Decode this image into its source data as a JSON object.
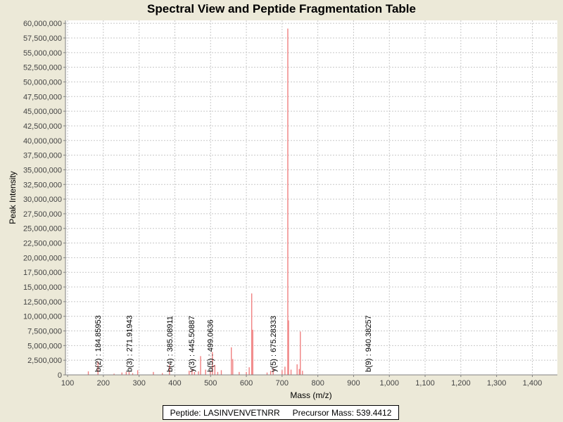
{
  "chart_data": {
    "type": "bar",
    "title": "Spectral View and Peptide Fragmentation Table",
    "xlabel": "Mass (m/z)",
    "ylabel": "Peak Intensity",
    "xlim": [
      94,
      1470
    ],
    "ylim": [
      0,
      60500000
    ],
    "x_ticks": [
      100,
      200,
      300,
      400,
      500,
      600,
      700,
      800,
      900,
      1000,
      1100,
      1200,
      1300,
      1400
    ],
    "x_tick_labels": [
      "100",
      "200",
      "300",
      "400",
      "500",
      "600",
      "700",
      "800",
      "900",
      "1,000",
      "1,100",
      "1,200",
      "1,300",
      "1,400"
    ],
    "y_ticks": [
      0,
      2500000,
      5000000,
      7500000,
      10000000,
      12500000,
      15000000,
      17500000,
      20000000,
      22500000,
      25000000,
      27500000,
      30000000,
      32500000,
      35000000,
      37500000,
      40000000,
      42500000,
      45000000,
      47500000,
      50000000,
      52500000,
      55000000,
      57500000,
      60000000
    ],
    "y_tick_labels": [
      "0",
      "2,500,000",
      "5,000,000",
      "7,500,000",
      "10,000,000",
      "12,500,000",
      "15,000,000",
      "17,500,000",
      "20,000,000",
      "22,500,000",
      "25,000,000",
      "27,500,000",
      "30,000,000",
      "32,500,000",
      "35,000,000",
      "37,500,000",
      "40,000,000",
      "42,500,000",
      "45,000,000",
      "47,500,000",
      "50,000,000",
      "52,500,000",
      "55,000,000",
      "57,500,000",
      "60,000,000"
    ],
    "grid": true,
    "peak_color": "#F08080",
    "peaks": [
      {
        "x": 158,
        "y": 600000
      },
      {
        "x": 185,
        "y": 2300000
      },
      {
        "x": 230,
        "y": 200000
      },
      {
        "x": 252,
        "y": 400000
      },
      {
        "x": 264,
        "y": 500000
      },
      {
        "x": 272,
        "y": 500000
      },
      {
        "x": 282,
        "y": 300000
      },
      {
        "x": 296,
        "y": 800000
      },
      {
        "x": 340,
        "y": 500000
      },
      {
        "x": 365,
        "y": 300000
      },
      {
        "x": 385,
        "y": 1700000
      },
      {
        "x": 440,
        "y": 700000
      },
      {
        "x": 448,
        "y": 900000
      },
      {
        "x": 455,
        "y": 500000
      },
      {
        "x": 466,
        "y": 600000
      },
      {
        "x": 472,
        "y": 3200000
      },
      {
        "x": 486,
        "y": 900000
      },
      {
        "x": 499,
        "y": 600000
      },
      {
        "x": 505,
        "y": 3900000
      },
      {
        "x": 512,
        "y": 1700000
      },
      {
        "x": 520,
        "y": 500000
      },
      {
        "x": 530,
        "y": 800000
      },
      {
        "x": 558,
        "y": 4700000
      },
      {
        "x": 562,
        "y": 2700000
      },
      {
        "x": 580,
        "y": 500000
      },
      {
        "x": 600,
        "y": 500000
      },
      {
        "x": 608,
        "y": 1300000
      },
      {
        "x": 615,
        "y": 13900000
      },
      {
        "x": 618,
        "y": 7700000
      },
      {
        "x": 658,
        "y": 400000
      },
      {
        "x": 668,
        "y": 700000
      },
      {
        "x": 675,
        "y": 1100000
      },
      {
        "x": 700,
        "y": 800000
      },
      {
        "x": 708,
        "y": 1400000
      },
      {
        "x": 716,
        "y": 59100000
      },
      {
        "x": 718,
        "y": 9300000
      },
      {
        "x": 725,
        "y": 900000
      },
      {
        "x": 742,
        "y": 1800000
      },
      {
        "x": 748,
        "y": 1000000
      },
      {
        "x": 751,
        "y": 7400000
      },
      {
        "x": 757,
        "y": 700000
      }
    ],
    "annotations": [
      {
        "x": 185,
        "text": "b(2) : 184.85953"
      },
      {
        "x": 272,
        "text": "b(3) : 271.91943"
      },
      {
        "x": 385,
        "text": "b(4) : 385.08911"
      },
      {
        "x": 446,
        "text": "y(3) : 445.50887"
      },
      {
        "x": 499,
        "text": "b(5) : 499.0636"
      },
      {
        "x": 675,
        "text": "y(5) : 675.28333"
      },
      {
        "x": 940,
        "text": "b(9) : 940.38257"
      }
    ]
  },
  "info": {
    "peptide": "Peptide: LASINVENVETNRR",
    "precursor": "Precursor Mass: 539.4412"
  }
}
